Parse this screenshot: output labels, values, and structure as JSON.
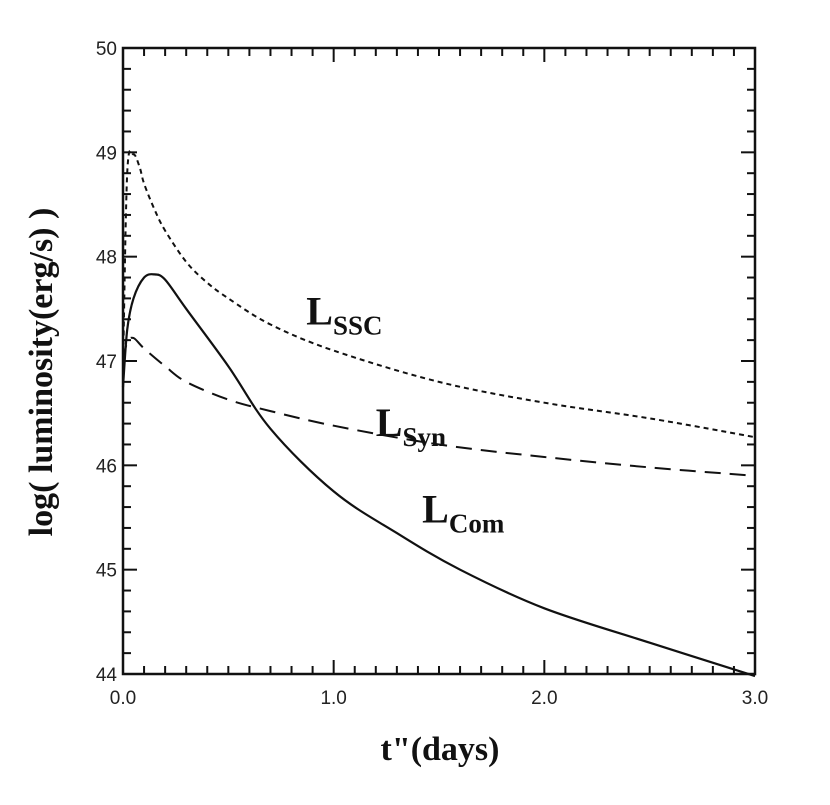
{
  "chart_data": {
    "type": "line",
    "xlabel": "t\"(days)",
    "ylabel": "log( luminosity(erg/s) )",
    "xlim": [
      0.0,
      3.0
    ],
    "ylim": [
      44,
      50
    ],
    "x_ticks": [
      0.0,
      1.0,
      2.0,
      3.0
    ],
    "x_tick_labels": [
      "0.0",
      "1.0",
      "2.0",
      "3.0"
    ],
    "y_ticks": [
      44,
      45,
      46,
      47,
      48,
      49,
      50
    ],
    "y_tick_labels": [
      "44",
      "45",
      "46",
      "47",
      "48",
      "49",
      "50"
    ],
    "grid": false,
    "series": [
      {
        "name": "SSC",
        "label_main": "L",
        "label_sub": "SSC",
        "style": "short-dash",
        "x": [
          0.0,
          0.02,
          0.05,
          0.08,
          0.1,
          0.15,
          0.2,
          0.3,
          0.4,
          0.5,
          0.7,
          1.0,
          1.5,
          2.0,
          2.5,
          3.0
        ],
        "y": [
          46.9,
          48.8,
          48.98,
          48.85,
          48.7,
          48.45,
          48.25,
          47.95,
          47.75,
          47.6,
          47.35,
          47.1,
          46.8,
          46.6,
          46.45,
          46.27
        ]
      },
      {
        "name": "Syn",
        "label_main": "L",
        "label_sub": "Syn",
        "style": "long-dash",
        "x": [
          0.0,
          0.02,
          0.05,
          0.1,
          0.2,
          0.3,
          0.5,
          0.7,
          1.0,
          1.5,
          2.0,
          2.5,
          3.0
        ],
        "y": [
          47.0,
          47.18,
          47.22,
          47.12,
          46.95,
          46.8,
          46.63,
          46.52,
          46.38,
          46.2,
          46.08,
          45.98,
          45.9
        ]
      },
      {
        "name": "Com",
        "label_main": "L",
        "label_sub": "Com",
        "style": "solid",
        "x": [
          0.0,
          0.02,
          0.05,
          0.1,
          0.15,
          0.2,
          0.3,
          0.5,
          0.7,
          1.0,
          1.3,
          1.6,
          2.0,
          2.5,
          3.0
        ],
        "y": [
          46.75,
          47.3,
          47.6,
          47.8,
          47.83,
          47.78,
          47.5,
          46.95,
          46.35,
          45.75,
          45.35,
          45.0,
          44.63,
          44.3,
          43.98
        ]
      }
    ]
  }
}
